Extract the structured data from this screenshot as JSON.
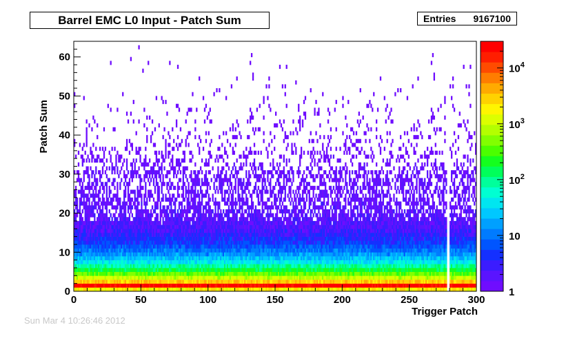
{
  "header": {
    "title": "Barrel EMC L0 Input - Patch Sum",
    "stats_label": "Entries",
    "stats_value": "9167100"
  },
  "footer": {
    "timestamp": "Sun Mar  4 10:26:46 2012"
  },
  "chart_data": {
    "type": "heatmap",
    "title": "Barrel EMC L0 Input - Patch Sum",
    "xlabel": "Trigger Patch",
    "ylabel": "Patch Sum",
    "xlim": [
      0,
      300
    ],
    "ylim": [
      0,
      64
    ],
    "x_ticks": [
      "0",
      "50",
      "100",
      "150",
      "200",
      "250",
      "300"
    ],
    "y_ticks": [
      "0",
      "10",
      "20",
      "30",
      "40",
      "50",
      "60"
    ],
    "colorbar": {
      "scale": "log",
      "range": [
        1,
        30000
      ],
      "tick_labels": [
        {
          "value": 1,
          "text": "1"
        },
        {
          "value": 10,
          "text": "10"
        },
        {
          "value": 100,
          "text": "10",
          "exp": "2"
        },
        {
          "value": 1000,
          "text": "10",
          "exp": "3"
        },
        {
          "value": 10000,
          "text": "10",
          "exp": "4"
        }
      ],
      "palette": [
        "#6f0dff",
        "#5a14ff",
        "#3b1cff",
        "#1430ff",
        "#0055ff",
        "#007bff",
        "#00a0ff",
        "#00c8ff",
        "#00e6f0",
        "#00ffd2",
        "#00ff9b",
        "#00ff5a",
        "#14ff1e",
        "#4bff00",
        "#82ff00",
        "#b4ff00",
        "#dcff00",
        "#fff500",
        "#ffd200",
        "#ffaa00",
        "#ff7d00",
        "#ff4b00",
        "#ff1e00",
        "#ff0000"
      ]
    },
    "profile": [
      {
        "sum": 0,
        "count": 2000
      },
      {
        "sum": 1,
        "count": 25000
      },
      {
        "sum": 2,
        "count": 3000
      },
      {
        "sum": 3,
        "count": 1000
      },
      {
        "sum": 4,
        "count": 400
      },
      {
        "sum": 5,
        "count": 180
      },
      {
        "sum": 6,
        "count": 90
      },
      {
        "sum": 7,
        "count": 40
      },
      {
        "sum": 8,
        "count": 25
      },
      {
        "sum": 9,
        "count": 15
      },
      {
        "sum": 10,
        "count": 10
      },
      {
        "sum": 12,
        "count": 5
      },
      {
        "sum": 15,
        "count": 3
      },
      {
        "sum": 20,
        "count": 1.6
      },
      {
        "sum": 25,
        "count": 1.2
      },
      {
        "sum": 30,
        "count": 1
      }
    ],
    "empty_patches": [
      278,
      279
    ],
    "entries": 9167100
  }
}
